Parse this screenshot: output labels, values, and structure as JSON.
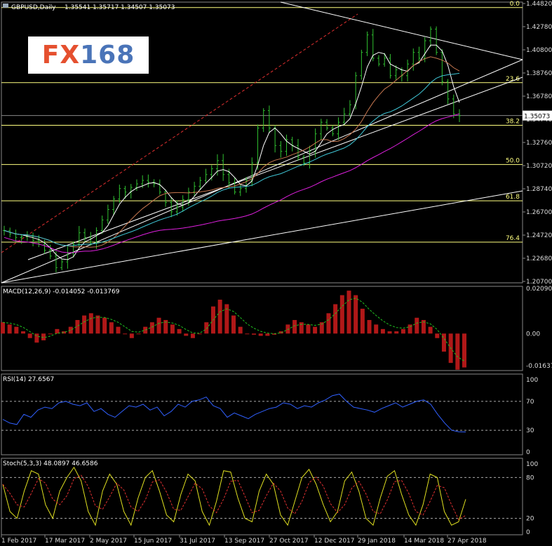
{
  "chart_data": [
    {
      "type": "candlestick",
      "pane": "price",
      "header": {
        "symbol": "GBPUSD,Daily",
        "ohlc": "1.35541 1.35717 1.34507 1.35073"
      },
      "last_price": "1.35073",
      "ylim": [
        1.207,
        1.4482
      ],
      "ytick_labels": [
        "1.44820",
        "1.42780",
        "1.40800",
        "1.38760",
        "1.36780",
        "1.34740",
        "1.32760",
        "1.30720",
        "1.28740",
        "1.26700",
        "1.24720",
        "1.22680",
        "1.20700"
      ],
      "fib_levels": [
        {
          "label": "0.0",
          "value": 1.4435
        },
        {
          "label": "23.6",
          "value": 1.379
        },
        {
          "label": "38.2",
          "value": 1.3424
        },
        {
          "label": "50.0",
          "value": 1.3087
        },
        {
          "label": "61.8",
          "value": 1.2775
        },
        {
          "label": "76.4",
          "value": 1.242
        }
      ],
      "x_labels": [
        "1 Feb 2017",
        "17 Mar 2017",
        "2 May 2017",
        "15 Jun 2017",
        "31 Jul 2017",
        "13 Sep 2017",
        "27 Oct 2017",
        "12 Dec 2017",
        "29 Jan 2018",
        "14 Mar 2018",
        "27 Apr 2018"
      ],
      "close_path": [
        [
          1.252,
          0
        ],
        [
          1.246,
          2
        ],
        [
          1.247,
          4
        ],
        [
          1.24,
          6
        ],
        [
          1.23,
          8
        ],
        [
          1.22,
          9
        ],
        [
          1.225,
          10
        ],
        [
          1.24,
          12
        ],
        [
          1.25,
          13
        ],
        [
          1.242,
          15
        ],
        [
          1.252,
          16
        ],
        [
          1.27,
          18
        ],
        [
          1.288,
          20
        ],
        [
          1.285,
          21
        ],
        [
          1.289,
          22
        ],
        [
          1.295,
          24
        ],
        [
          1.292,
          26
        ],
        [
          1.285,
          27
        ],
        [
          1.276,
          28
        ],
        [
          1.268,
          29
        ],
        [
          1.272,
          30
        ],
        [
          1.285,
          32
        ],
        [
          1.295,
          34
        ],
        [
          1.305,
          36
        ],
        [
          1.312,
          37
        ],
        [
          1.3,
          38
        ],
        [
          1.293,
          39
        ],
        [
          1.285,
          40
        ],
        [
          1.288,
          41
        ],
        [
          1.295,
          42
        ],
        [
          1.31,
          43
        ],
        [
          1.34,
          44
        ],
        [
          1.355,
          45
        ],
        [
          1.34,
          46
        ],
        [
          1.325,
          47
        ],
        [
          1.32,
          48
        ],
        [
          1.33,
          49
        ],
        [
          1.325,
          50
        ],
        [
          1.315,
          51
        ],
        [
          1.31,
          52
        ],
        [
          1.32,
          53
        ],
        [
          1.335,
          54
        ],
        [
          1.345,
          55
        ],
        [
          1.34,
          56
        ],
        [
          1.335,
          57
        ],
        [
          1.345,
          58
        ],
        [
          1.352,
          59
        ],
        [
          1.36,
          60
        ],
        [
          1.385,
          61
        ],
        [
          1.405,
          62
        ],
        [
          1.42,
          63
        ],
        [
          1.4,
          64
        ],
        [
          1.395,
          65
        ],
        [
          1.4,
          66
        ],
        [
          1.385,
          67
        ],
        [
          1.39,
          68
        ],
        [
          1.385,
          69
        ],
        [
          1.395,
          70
        ],
        [
          1.405,
          71
        ],
        [
          1.4,
          72
        ],
        [
          1.415,
          73
        ],
        [
          1.425,
          74
        ],
        [
          1.405,
          75
        ],
        [
          1.38,
          76
        ],
        [
          1.365,
          77
        ],
        [
          1.352,
          78
        ],
        [
          1.3507,
          79
        ]
      ],
      "moving_averages": [
        {
          "color": "#ffffff",
          "desc": "fast"
        },
        {
          "color": "#c87850",
          "desc": "medium"
        },
        {
          "color": "#40c8d8",
          "desc": "slow"
        },
        {
          "color": "#e020e0",
          "desc": "longest"
        }
      ]
    },
    {
      "type": "histogram",
      "pane": "macd",
      "header": "MACD(12,26,9) -0.014052 -0.013769",
      "ytick_labels": [
        "0.020906",
        "0.00",
        "-0.016374"
      ],
      "ylim": [
        -0.016374,
        0.020906
      ],
      "values": [
        0.005,
        0.004,
        0.003,
        0.001,
        -0.002,
        -0.004,
        -0.003,
        0.0,
        0.002,
        0.001,
        0.003,
        0.006,
        0.008,
        0.009,
        0.008,
        0.007,
        0.005,
        0.003,
        0.0,
        -0.002,
        0.0,
        0.003,
        0.005,
        0.007,
        0.006,
        0.004,
        0.002,
        -0.001,
        -0.002,
        0.0,
        0.005,
        0.012,
        0.015,
        0.013,
        0.008,
        0.003,
        0.0,
        -0.0005,
        -0.001,
        -0.001,
        -0.0005,
        0.001,
        0.004,
        0.006,
        0.005,
        0.004,
        0.003,
        0.005,
        0.009,
        0.013,
        0.017,
        0.019,
        0.017,
        0.011,
        0.006,
        0.004,
        0.002,
        0.001,
        0.001,
        0.002,
        0.004,
        0.007,
        0.006,
        0.003,
        -0.002,
        -0.008,
        -0.013,
        -0.016,
        -0.015
      ]
    },
    {
      "type": "line",
      "pane": "rsi",
      "header": "RSI(14) 27.6567",
      "ytick_labels": [
        "100",
        "70",
        "30",
        "0"
      ],
      "ylim": [
        0,
        100
      ],
      "levels": [
        70,
        30
      ],
      "values": [
        45,
        40,
        38,
        52,
        48,
        58,
        62,
        60,
        68,
        70,
        66,
        64,
        68,
        56,
        60,
        52,
        48,
        56,
        64,
        62,
        66,
        58,
        62,
        50,
        56,
        66,
        62,
        70,
        72,
        76,
        64,
        60,
        48,
        54,
        50,
        46,
        52,
        56,
        60,
        62,
        68,
        66,
        60,
        64,
        62,
        68,
        72,
        78,
        80,
        70,
        62,
        60,
        58,
        55,
        60,
        64,
        68,
        62,
        66,
        70,
        72,
        66,
        52,
        40,
        30,
        28,
        27.6567
      ]
    },
    {
      "type": "line",
      "pane": "stochastic",
      "header": "Stoch(5,3,3) 48.0897 46.6586",
      "ytick_labels": [
        "100",
        "80",
        "20",
        "0"
      ],
      "ylim": [
        0,
        100
      ],
      "levels": [
        80,
        20
      ],
      "values": [
        70,
        30,
        20,
        60,
        90,
        85,
        40,
        20,
        60,
        80,
        95,
        75,
        30,
        10,
        60,
        85,
        70,
        30,
        10,
        50,
        80,
        90,
        60,
        25,
        15,
        55,
        85,
        75,
        30,
        10,
        45,
        90,
        88,
        50,
        20,
        15,
        60,
        85,
        70,
        25,
        10,
        45,
        80,
        92,
        70,
        40,
        15,
        30,
        75,
        88,
        60,
        20,
        10,
        50,
        82,
        90,
        55,
        25,
        10,
        40,
        85,
        80,
        30,
        10,
        15,
        48.0897
      ]
    }
  ],
  "colors": {
    "background": "#000000",
    "candle": "#30c030",
    "fib": "#ffff80",
    "macd_hist": "#b01818",
    "macd_signal": "#20c020",
    "rsi": "#3060ff",
    "stoch_main": "#e0e020",
    "stoch_signal": "#e03030",
    "trend": "#ffffff",
    "channel": "#e03030"
  },
  "logo": {
    "part1": "FX",
    "part2": "168"
  }
}
